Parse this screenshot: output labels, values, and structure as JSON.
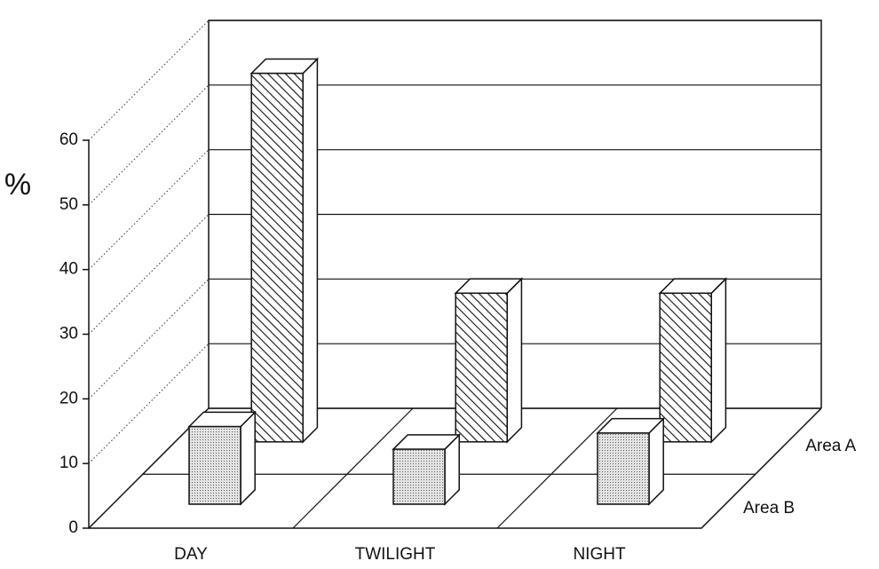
{
  "chart_data": {
    "type": "bar3d",
    "y_label": "%",
    "categories": [
      "DAY",
      "TWILIGHT",
      "NIGHT"
    ],
    "series": [
      {
        "name": "Area A",
        "pattern": "hatch",
        "values": [
          57,
          23,
          23
        ]
      },
      {
        "name": "Area B",
        "pattern": "dots",
        "values": [
          12,
          8.5,
          11
        ]
      }
    ],
    "ylim": [
      0,
      60
    ],
    "yticks": [
      0,
      10,
      20,
      30,
      40,
      50,
      60
    ],
    "grid": true
  }
}
